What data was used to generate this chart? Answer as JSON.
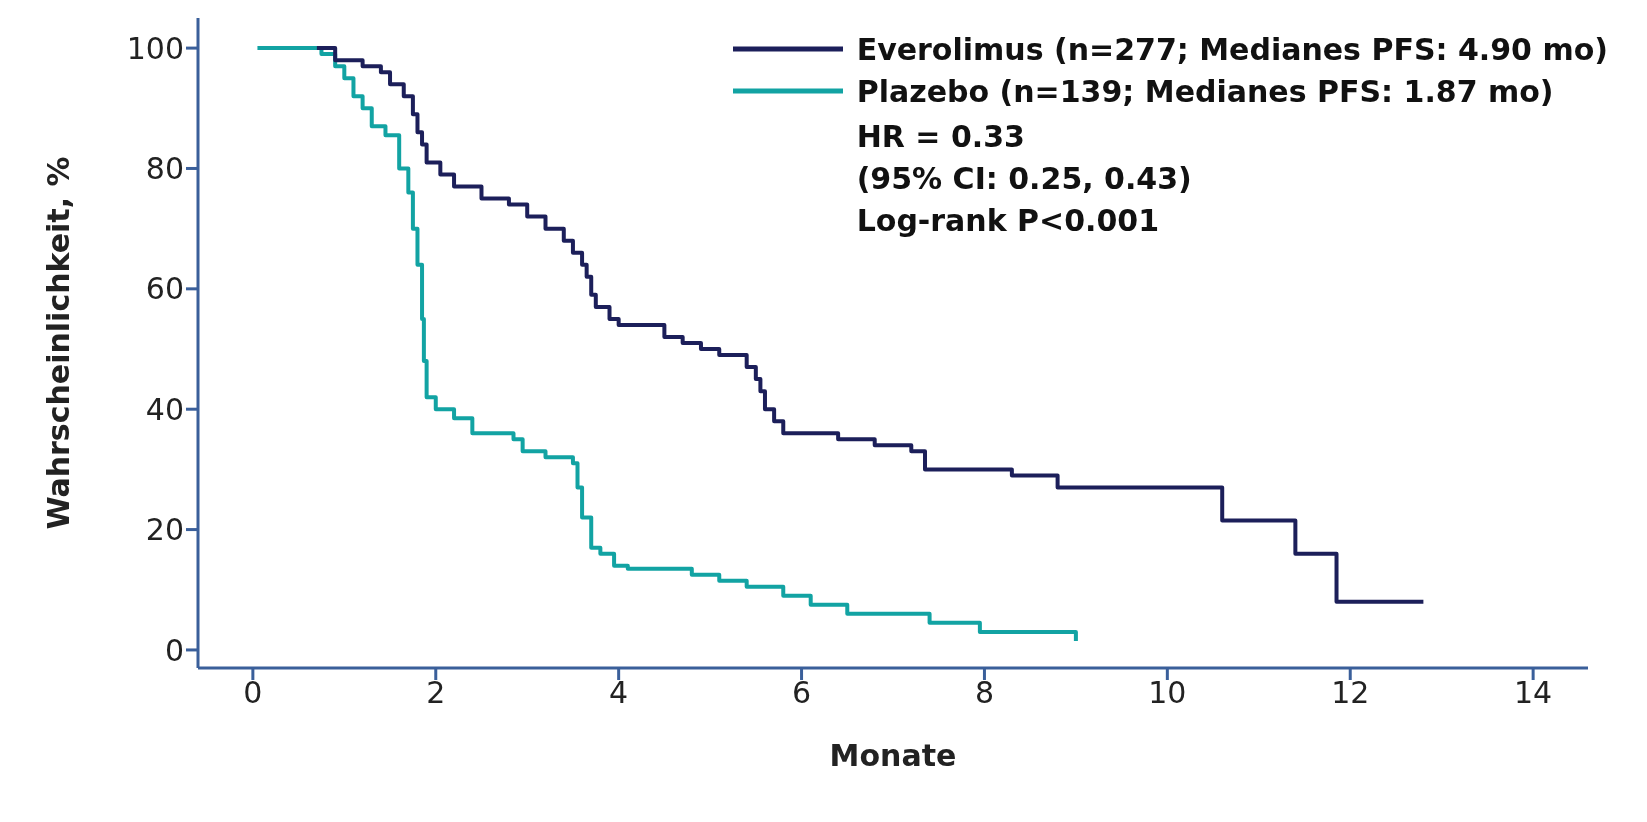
{
  "chart_data": {
    "type": "step",
    "xlabel": "Monate",
    "ylabel": "Wahrscheinlichkeit, %",
    "xlim": [
      -0.6,
      14.6
    ],
    "ylim": [
      -3,
      105
    ],
    "xticks": [
      0,
      2,
      4,
      6,
      8,
      10,
      12,
      14
    ],
    "yticks": [
      0,
      20,
      40,
      60,
      80,
      100
    ],
    "grid": false,
    "legend": "top right",
    "line_style": "solid",
    "marker": "none",
    "series": [
      {
        "name": "Everolimus (n=277; Medianes PFS: 4.90 mo)",
        "color": "#1c1f5a",
        "x": [
          0.7,
          0.9,
          1.2,
          1.4,
          1.5,
          1.65,
          1.75,
          1.8,
          1.85,
          1.9,
          2.05,
          2.2,
          2.5,
          2.8,
          3.0,
          3.2,
          3.4,
          3.5,
          3.6,
          3.65,
          3.7,
          3.75,
          3.9,
          4.0,
          4.5,
          4.7,
          4.9,
          5.1,
          5.4,
          5.5,
          5.55,
          5.6,
          5.7,
          5.8,
          6.4,
          6.8,
          7.2,
          7.35,
          8.3,
          8.8,
          10.5,
          10.6,
          11.4,
          11.85,
          12.8
        ],
        "values": [
          100,
          98,
          97,
          96,
          94,
          92,
          89,
          86,
          84,
          81,
          79,
          77,
          75,
          74,
          72,
          70,
          68,
          66,
          64,
          62,
          59,
          57,
          55,
          54,
          52,
          51,
          50,
          49,
          47,
          45,
          43,
          40,
          38,
          36,
          35,
          34,
          33,
          30,
          29,
          27,
          27,
          21.5,
          16,
          8,
          8
        ]
      },
      {
        "name": "Plazebo (n=139; Medianes PFS: 1.87 mo)",
        "color": "#12a3a3",
        "x": [
          0.05,
          0.75,
          0.9,
          1.0,
          1.1,
          1.2,
          1.3,
          1.45,
          1.6,
          1.7,
          1.75,
          1.8,
          1.85,
          1.87,
          1.9,
          2.0,
          2.2,
          2.4,
          2.85,
          2.95,
          3.2,
          3.5,
          3.55,
          3.6,
          3.7,
          3.8,
          3.95,
          4.1,
          4.8,
          5.1,
          5.4,
          5.8,
          6.1,
          6.5,
          7.4,
          7.95,
          8.99,
          9.0
        ],
        "values": [
          100,
          99,
          97,
          95,
          92,
          90,
          87,
          85.5,
          80,
          76,
          70,
          64,
          55,
          48,
          42,
          40,
          38.5,
          36,
          35,
          33,
          32,
          31,
          27,
          22,
          17,
          16,
          14,
          13.5,
          12.5,
          11.5,
          10.5,
          9,
          7.5,
          6,
          4.5,
          3,
          3,
          1.5
        ]
      }
    ],
    "annotations": [
      "HR = 0.33",
      "(95% CI: 0.25, 0.43)",
      "Log-rank P<0.001"
    ]
  }
}
